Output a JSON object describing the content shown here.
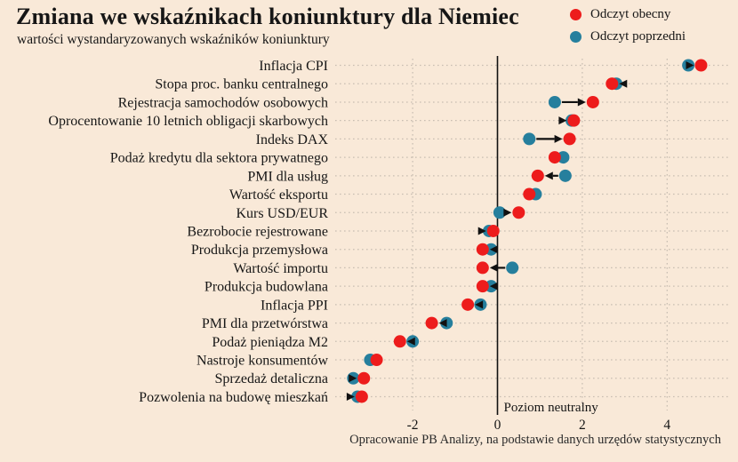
{
  "colors": {
    "background": "#f9e9d8",
    "current": "#ed1c1c",
    "previous": "#267f9d",
    "grid": "#c9beb2",
    "axis": "#111111",
    "text": "#161616"
  },
  "chart_data": {
    "type": "scatter",
    "variant": "dumbbell-dot-change",
    "title": "Zmiana we wskaźnikach koniunktury dla Niemiec",
    "subtitle": "wartości wystandaryzowanych wskaźników koniunktury",
    "series": [
      {
        "name": "Odczyt obecny",
        "key": "current",
        "color": "#ed1c1c"
      },
      {
        "name": "Odczyt poprzedni",
        "key": "previous",
        "color": "#267f9d"
      }
    ],
    "xlim": [
      -3.85,
      5.45
    ],
    "xticks": [
      "-2",
      "0",
      "2",
      "4"
    ],
    "xtick_values": [
      -2,
      0,
      2,
      4
    ],
    "grid": "dotted",
    "neutral_line": {
      "x": 0,
      "label": "Poziom neutralny"
    },
    "source": "Opracowanie PB Analizy, na podstawie danych urzędów statystycznych",
    "rows": [
      {
        "label": "Inflacja CPI",
        "current": 4.8,
        "previous": 4.5,
        "arrow": true
      },
      {
        "label": "Stopa proc. banku centralnego",
        "current": 2.7,
        "previous": 2.8,
        "arrow": true
      },
      {
        "label": "Rejestracja samochodów osobowych",
        "current": 2.25,
        "previous": 1.35,
        "arrow": true
      },
      {
        "label": "Oprocentowanie 10 letnich obligacji skarbowych",
        "current": 1.8,
        "previous": 1.75,
        "arrow": true
      },
      {
        "label": "Indeks DAX",
        "current": 1.7,
        "previous": 0.75,
        "arrow": true
      },
      {
        "label": "Podaż kredytu dla sektora prywatnego",
        "current": 1.35,
        "previous": 1.55,
        "arrow": false
      },
      {
        "label": "PMI dla usług",
        "current": 0.95,
        "previous": 1.6,
        "arrow": true
      },
      {
        "label": "Wartość eksportu",
        "current": 0.75,
        "previous": 0.9,
        "arrow": false
      },
      {
        "label": "Kurs USD/EUR",
        "current": 0.5,
        "previous": 0.05,
        "arrow": true
      },
      {
        "label": "Bezrobocie rejestrowane",
        "current": -0.1,
        "previous": -0.2,
        "arrow": true
      },
      {
        "label": "Produkcja przemysłowa",
        "current": -0.35,
        "previous": -0.15,
        "arrow": true
      },
      {
        "label": "Wartość importu",
        "current": -0.35,
        "previous": 0.35,
        "arrow": true
      },
      {
        "label": "Produkcja budowlana",
        "current": -0.35,
        "previous": -0.15,
        "arrow": true
      },
      {
        "label": "Inflacja PPI",
        "current": -0.7,
        "previous": -0.4,
        "arrow": true
      },
      {
        "label": "PMI dla przetwórstwa",
        "current": -1.55,
        "previous": -1.2,
        "arrow": true
      },
      {
        "label": "Podaż pieniądza M2",
        "current": -2.3,
        "previous": -2.0,
        "arrow": true
      },
      {
        "label": "Nastroje konsumentów",
        "current": -2.85,
        "previous": -3.0,
        "arrow": false
      },
      {
        "label": "Sprzedaż detaliczna",
        "current": -3.15,
        "previous": -3.4,
        "arrow": true
      },
      {
        "label": "Pozwolenia na budowę mieszkań",
        "current": -3.2,
        "previous": -3.3,
        "arrow": true
      }
    ]
  }
}
